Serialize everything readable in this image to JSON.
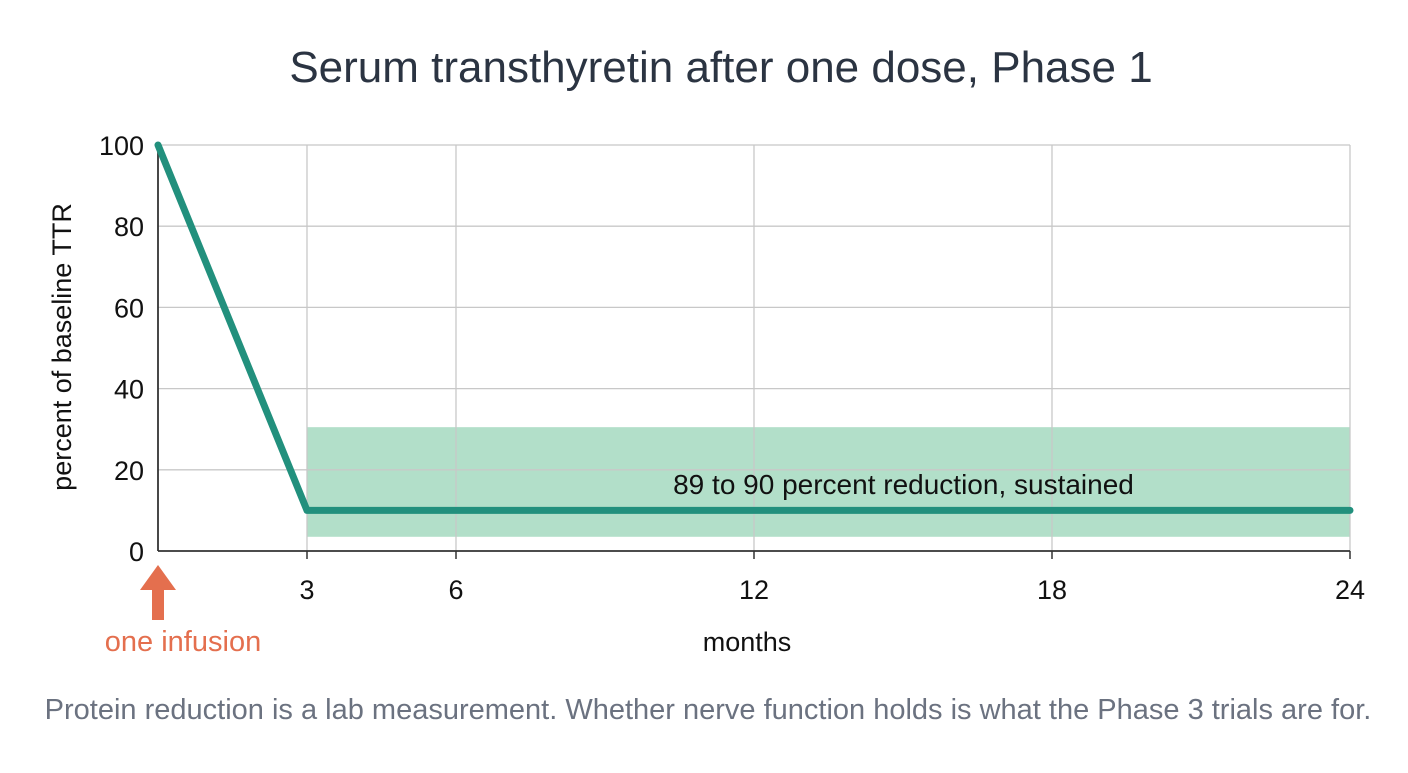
{
  "chart_data": {
    "type": "line",
    "title": "Serum transthyretin after one dose, Phase 1",
    "xlabel": "months",
    "ylabel": "percent of baseline TTR",
    "xlim": [
      0,
      24
    ],
    "ylim": [
      0,
      100
    ],
    "x_ticks": [
      3,
      6,
      12,
      18,
      24
    ],
    "y_ticks": [
      0,
      20,
      40,
      60,
      80,
      100
    ],
    "grid": true,
    "series": [
      {
        "x": [
          0,
          3,
          24
        ],
        "y": [
          100,
          10,
          10
        ]
      }
    ],
    "band": {
      "x_range": [
        3,
        24
      ],
      "y_range": [
        3.5,
        30.5
      ],
      "label": "89 to 90 percent reduction, sustained"
    },
    "marker": {
      "x": 0,
      "label": "one infusion"
    },
    "colors": {
      "line": "#22907d",
      "band": "#b2dfc9",
      "marker": "#e46f4e",
      "grid": "#c8c8c8",
      "axis": "#333333"
    }
  },
  "caption": "Protein reduction is a lab measurement. Whether nerve function holds is what the Phase 3 trials are for."
}
